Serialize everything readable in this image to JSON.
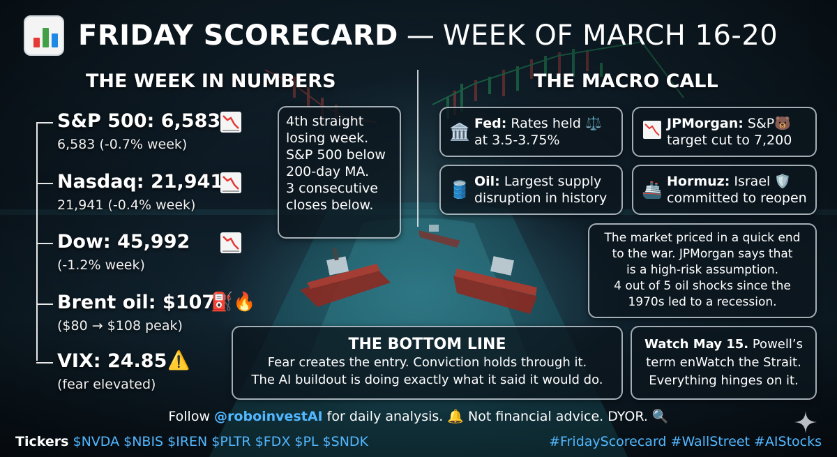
{
  "header": {
    "title": "FRIDAY SCORECARD",
    "dash": "—",
    "week": "WEEK OF MARCH 16-20",
    "icon": "bar-chart-icon"
  },
  "left": {
    "heading": "THE WEEK IN NUMBERS",
    "stats": [
      {
        "label": "S&P 500: 6,583",
        "sub": "6,583 (-0.7% week)",
        "icon": "chart-decreasing-icon"
      },
      {
        "label": "Nasdaq: 21,941",
        "sub": "21,941 (-0.4% week)",
        "icon": "chart-decreasing-icon"
      },
      {
        "label": "Dow: 45,992",
        "sub": "(-1.2% week)",
        "icon": "chart-decreasing-icon"
      },
      {
        "label": "Brent oil: $107",
        "sub": "($80 → $108 peak)",
        "icon": "fuel-pump-fire-icon"
      },
      {
        "label": "VIX: 24.85",
        "sub": "(fear elevated)",
        "icon": "warning-icon"
      }
    ],
    "note_lines": [
      "4th straight",
      "losing week.",
      "S&P 500 below",
      "200-day MA.",
      "3 consecutive",
      "closes below."
    ]
  },
  "right": {
    "heading": "THE MACRO CALL",
    "cards": [
      {
        "name": "Fed:",
        "line1": "Rates held",
        "line2": "at 3.5-3.75%",
        "icon": "bank-icon",
        "trail_icon": "scales-icon"
      },
      {
        "name": "JPMorgan:",
        "line1": "S&P",
        "line2": "target cut to 7,200",
        "icon": "chart-decreasing-icon",
        "trail_icon": "bear-icon"
      },
      {
        "name": "Oil:",
        "line1": "Largest supply",
        "line2": "disruption in history",
        "icon": "oil-barrel-icon"
      },
      {
        "name": "Hormuz:",
        "line1": "Israel",
        "line2": "committed to reopen",
        "icon": "ship-icon",
        "trail_icon": "shield-icon"
      }
    ],
    "market_note": [
      "The market priced in a quick end",
      "to the war. JPMorgan says that",
      "is a high-risk assumption.",
      "4 out of 5 oil shocks since the",
      "1970s led to a recession."
    ]
  },
  "bottom_line": {
    "title": "THE BOTTOM LINE",
    "line1": "Fear creates the entry. Conviction holds through it.",
    "line2": "The AI buildout is doing exactly what it said it would do."
  },
  "watch": {
    "bold": "Watch May 15.",
    "line1_rest": " Powell’s",
    "line2": "term enWatch the Strait.",
    "line3": "Everything hinges on it."
  },
  "footer": {
    "follow_prefix": "Follow ",
    "handle": "@roboinvestAI",
    "follow_suffix": " for daily analysis. 🔔 Not financial advice. DYOR. 🔍",
    "tickers_label": "Tickers",
    "tickers": "$NVDA $NBIS $IREN $PLTR $FDX $PL $SNDK",
    "hashtags": "#FridayScorecard #WallStreet #AIStocks"
  },
  "colors": {
    "accent_blue": "#52b7ff",
    "down_red": "#e53935",
    "background": "#0b1620"
  }
}
